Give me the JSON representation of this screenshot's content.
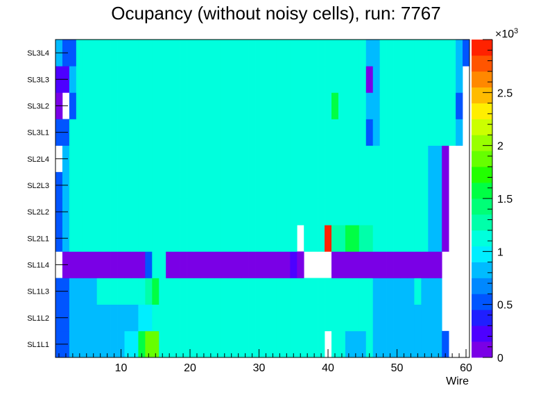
{
  "chart_data": {
    "type": "heatmap",
    "title": "Ocupancy (without noisy cells), run: 7767",
    "xlabel": "Wire",
    "ylabel": "",
    "x_range": [
      0.5,
      60.5
    ],
    "x_ticks": [
      10,
      20,
      30,
      40,
      50,
      60
    ],
    "x_tick_labels": [
      "10",
      "20",
      "30",
      "40",
      "50",
      "60"
    ],
    "y_labels": [
      "SL1L1",
      "SL1L2",
      "SL1L3",
      "SL1L4",
      "SL2L1",
      "SL2L2",
      "SL2L3",
      "SL2L4",
      "SL3L1",
      "SL3L2",
      "SL3L3",
      "SL3L4"
    ],
    "z_range": [
      0,
      3000
    ],
    "z_multiplier_label": "×10",
    "z_multiplier_exponent": "3",
    "z_tick_values": [
      0,
      0.5,
      1,
      1.5,
      2,
      2.5
    ],
    "z_tick_labels": [
      "0",
      "0.5",
      "1",
      "1.5",
      "2",
      "2.5"
    ],
    "colors": [
      "#7a00e6",
      "#4d00ff",
      "#1f1fff",
      "#0055ff",
      "#0088ff",
      "#00bbff",
      "#00eeff",
      "#00ffdd",
      "#00ffaa",
      "#00ff77",
      "#00ff44",
      "#22ff00",
      "#66ff00",
      "#99ff00",
      "#ccff00",
      "#ffee00",
      "#ffbb00",
      "#ff8800",
      "#ff5500",
      "#ff2200"
    ],
    "layers": {
      "SL1L1": [
        450,
        580,
        750,
        750,
        750,
        750,
        880,
        880,
        880,
        880,
        1020,
        1020,
        1500,
        1850,
        1850,
        1050,
        1050,
        1050,
        1050,
        1050,
        1050,
        1050,
        1050,
        1050,
        1050,
        1050,
        1050,
        1050,
        1050,
        1050,
        1050,
        1050,
        1050,
        1150,
        1150,
        1050,
        1050,
        1050,
        1050,
        0,
        1050,
        1050,
        880,
        880,
        880,
        1050,
        880,
        880,
        880,
        880,
        880,
        880,
        880,
        880,
        750,
        750,
        450,
        0,
        0,
        0
      ],
      "SL1L2": [
        450,
        580,
        750,
        750,
        750,
        880,
        880,
        750,
        750,
        880,
        880,
        880,
        1020,
        1020,
        1150,
        1150,
        1050,
        1050,
        1050,
        1050,
        1050,
        1050,
        1050,
        1050,
        1050,
        1050,
        1050,
        1050,
        1050,
        1050,
        1050,
        1050,
        1050,
        1050,
        1050,
        1050,
        1050,
        1050,
        1050,
        1050,
        1050,
        1050,
        1050,
        1050,
        1050,
        1050,
        880,
        880,
        880,
        880,
        880,
        880,
        880,
        880,
        750,
        750,
        0,
        0,
        0,
        0
      ],
      "SL1L3": [
        450,
        580,
        880,
        880,
        880,
        750,
        1050,
        1050,
        1050,
        1050,
        1050,
        1050,
        1050,
        1250,
        1550,
        1050,
        1050,
        1050,
        1050,
        1050,
        1050,
        1050,
        1050,
        1050,
        1050,
        1050,
        1050,
        1050,
        1050,
        1150,
        1050,
        1050,
        1050,
        1150,
        1050,
        1050,
        1050,
        1050,
        1050,
        1050,
        1050,
        1050,
        1050,
        1050,
        1050,
        1050,
        880,
        880,
        880,
        880,
        880,
        880,
        1050,
        880,
        880,
        750,
        0,
        0,
        0,
        0
      ],
      "SL1L4": [
        0,
        120,
        120,
        120,
        120,
        120,
        120,
        120,
        120,
        120,
        120,
        120,
        120,
        500,
        1050,
        1050,
        120,
        120,
        120,
        120,
        120,
        120,
        120,
        120,
        120,
        120,
        120,
        120,
        120,
        120,
        120,
        120,
        120,
        120,
        280,
        120,
        0,
        0,
        0,
        0,
        120,
        120,
        120,
        120,
        120,
        120,
        120,
        120,
        120,
        120,
        120,
        120,
        120,
        120,
        120,
        120,
        0,
        0,
        0,
        0
      ],
      "SL2L1": [
        580,
        750,
        1150,
        1150,
        1150,
        1150,
        1150,
        1150,
        1150,
        1150,
        1150,
        1150,
        1150,
        1150,
        1150,
        1150,
        1150,
        1150,
        1150,
        1150,
        1150,
        1150,
        1150,
        1150,
        1150,
        1150,
        1150,
        1150,
        1150,
        1150,
        1150,
        1150,
        1150,
        1150,
        1050,
        0,
        1050,
        1050,
        1050,
        2950,
        1300,
        1300,
        1500,
        1500,
        1300,
        1300,
        1150,
        1150,
        1150,
        1150,
        1150,
        1150,
        1150,
        1150,
        880,
        750,
        120,
        0,
        0,
        0
      ],
      "SL2L2": [
        580,
        750,
        1150,
        1150,
        1150,
        1150,
        1150,
        1150,
        1150,
        1150,
        1150,
        1150,
        1150,
        1150,
        1150,
        1150,
        1150,
        1150,
        1150,
        1150,
        1150,
        1150,
        1150,
        1150,
        1150,
        1150,
        1150,
        1150,
        1150,
        1150,
        1150,
        1150,
        1150,
        1150,
        1150,
        1150,
        1150,
        1150,
        1150,
        1150,
        1150,
        1150,
        1150,
        1150,
        1150,
        1150,
        1150,
        1150,
        1150,
        1150,
        1150,
        1150,
        1150,
        1150,
        880,
        750,
        120,
        0,
        0,
        0
      ],
      "SL2L3": [
        580,
        750,
        1150,
        1150,
        1150,
        1150,
        1150,
        1150,
        1150,
        1150,
        1150,
        1150,
        1150,
        1150,
        1150,
        1150,
        1150,
        1150,
        1150,
        1150,
        1150,
        1150,
        1150,
        1150,
        1150,
        1150,
        1150,
        1150,
        1150,
        1150,
        1150,
        1150,
        1150,
        1150,
        1150,
        1150,
        1150,
        1150,
        1150,
        1150,
        1150,
        1150,
        1150,
        1150,
        1150,
        1150,
        1150,
        1150,
        1150,
        1150,
        1150,
        1150,
        1150,
        1150,
        750,
        750,
        120,
        0,
        0,
        0
      ],
      "SL2L4": [
        0,
        750,
        1150,
        1150,
        1150,
        1150,
        1150,
        1150,
        1150,
        1150,
        1150,
        1150,
        1150,
        1150,
        1150,
        1150,
        1150,
        1150,
        1150,
        1150,
        1150,
        1150,
        1150,
        1150,
        1150,
        1150,
        1150,
        1150,
        1150,
        1150,
        1150,
        1150,
        1150,
        1150,
        1150,
        1150,
        1150,
        1150,
        1150,
        1150,
        1150,
        1150,
        1150,
        1150,
        1150,
        1150,
        1150,
        1150,
        1150,
        1150,
        1150,
        1150,
        1150,
        1150,
        880,
        880,
        120,
        0,
        0,
        0
      ],
      "SL3L1": [
        450,
        580,
        1050,
        1050,
        1050,
        1050,
        1050,
        1050,
        1050,
        1050,
        1050,
        1050,
        1050,
        1050,
        1050,
        1050,
        1050,
        1050,
        1050,
        1050,
        1050,
        1050,
        1050,
        1050,
        1050,
        1050,
        1050,
        1050,
        1050,
        1050,
        1050,
        1050,
        1050,
        1050,
        1050,
        1050,
        1050,
        1050,
        1050,
        1050,
        1050,
        1050,
        1050,
        1050,
        1050,
        450,
        880,
        1050,
        1050,
        1050,
        1050,
        1050,
        1050,
        1050,
        1050,
        1050,
        1050,
        1050,
        880,
        0
      ],
      "SL3L2": [
        120,
        0,
        450,
        1050,
        1050,
        1050,
        1050,
        1050,
        1050,
        1050,
        1050,
        1050,
        1050,
        1050,
        1050,
        1050,
        1050,
        1050,
        1050,
        1050,
        1050,
        1050,
        1050,
        1050,
        1050,
        1050,
        1050,
        1050,
        1050,
        1050,
        1050,
        1050,
        1050,
        1050,
        1050,
        1050,
        1050,
        1050,
        1050,
        1050,
        1550,
        1050,
        1050,
        1050,
        1050,
        750,
        880,
        1050,
        1050,
        1050,
        1050,
        1050,
        1050,
        1050,
        1050,
        1050,
        1050,
        1050,
        450,
        0
      ],
      "SL3L3": [
        280,
        280,
        880,
        1050,
        1050,
        1050,
        1050,
        1050,
        1050,
        1050,
        1050,
        1050,
        1050,
        1050,
        1050,
        1050,
        1050,
        1050,
        1050,
        1050,
        1050,
        1050,
        1050,
        1050,
        1050,
        1050,
        1050,
        1050,
        1050,
        1050,
        1050,
        1050,
        1050,
        1050,
        1050,
        1050,
        1050,
        1050,
        1050,
        1050,
        1050,
        1050,
        1050,
        1050,
        1050,
        120,
        880,
        1050,
        1050,
        1050,
        1050,
        1050,
        1050,
        1050,
        1050,
        1050,
        1050,
        1050,
        750,
        0
      ],
      "SL3L4": [
        880,
        580,
        450,
        1050,
        1050,
        1050,
        1050,
        1050,
        1050,
        1050,
        1050,
        1050,
        1050,
        1050,
        1050,
        1050,
        1050,
        1050,
        1050,
        1050,
        1050,
        1050,
        1050,
        1050,
        1050,
        1050,
        1050,
        1050,
        1050,
        1050,
        1050,
        1050,
        1050,
        1050,
        1050,
        1050,
        1050,
        1050,
        1050,
        1050,
        1050,
        1050,
        1050,
        1050,
        1050,
        880,
        880,
        1050,
        1050,
        1050,
        1050,
        1050,
        1050,
        1050,
        1050,
        1050,
        1050,
        1050,
        750,
        450
      ]
    }
  }
}
